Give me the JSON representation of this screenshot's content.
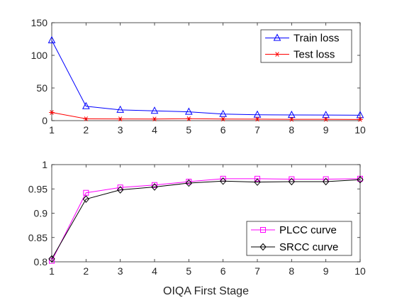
{
  "chart_data": [
    {
      "type": "line",
      "x": [
        1,
        2,
        3,
        4,
        5,
        6,
        7,
        8,
        9,
        10
      ],
      "xlim": [
        1,
        10
      ],
      "ylim": [
        0,
        150
      ],
      "xticks": [
        "1",
        "2",
        "3",
        "4",
        "5",
        "6",
        "7",
        "8",
        "9",
        "10"
      ],
      "yticks": [
        "0",
        "50",
        "100",
        "150"
      ],
      "ytick_values": [
        0,
        50,
        100,
        150
      ],
      "grid": false,
      "legend_position": "top-right",
      "xlabel": "",
      "series": [
        {
          "name": "Train loss",
          "color": "#0000ff",
          "marker": "triangle",
          "values": [
            123,
            22,
            16.5,
            15,
            13.5,
            10,
            9,
            8.7,
            8.5,
            8.3
          ]
        },
        {
          "name": "Test loss",
          "color": "#ff0000",
          "marker": "asterisk",
          "values": [
            12.5,
            2.8,
            2.6,
            2.5,
            3.0,
            2.4,
            2.3,
            2.0,
            2.0,
            1.8
          ]
        }
      ]
    },
    {
      "type": "line",
      "x": [
        1,
        2,
        3,
        4,
        5,
        6,
        7,
        8,
        9,
        10
      ],
      "xlim": [
        1,
        10
      ],
      "ylim": [
        0.8,
        1.0
      ],
      "xticks": [
        "1",
        "2",
        "3",
        "4",
        "5",
        "6",
        "7",
        "8",
        "9",
        "10"
      ],
      "yticks": [
        "0.8",
        "0.85",
        "0.9",
        "0.95",
        "1"
      ],
      "ytick_values": [
        0.8,
        0.85,
        0.9,
        0.95,
        1.0
      ],
      "grid": false,
      "legend_position": "bottom-right",
      "xlabel": "OIQA First Stage",
      "series": [
        {
          "name": "PLCC curve",
          "color": "#ff00ff",
          "marker": "square",
          "values": [
            0.802,
            0.942,
            0.953,
            0.958,
            0.965,
            0.971,
            0.971,
            0.97,
            0.97,
            0.971
          ]
        },
        {
          "name": "SRCC curve",
          "color": "#000000",
          "marker": "diamond",
          "values": [
            0.806,
            0.929,
            0.948,
            0.954,
            0.962,
            0.966,
            0.964,
            0.965,
            0.965,
            0.969
          ]
        }
      ]
    }
  ]
}
